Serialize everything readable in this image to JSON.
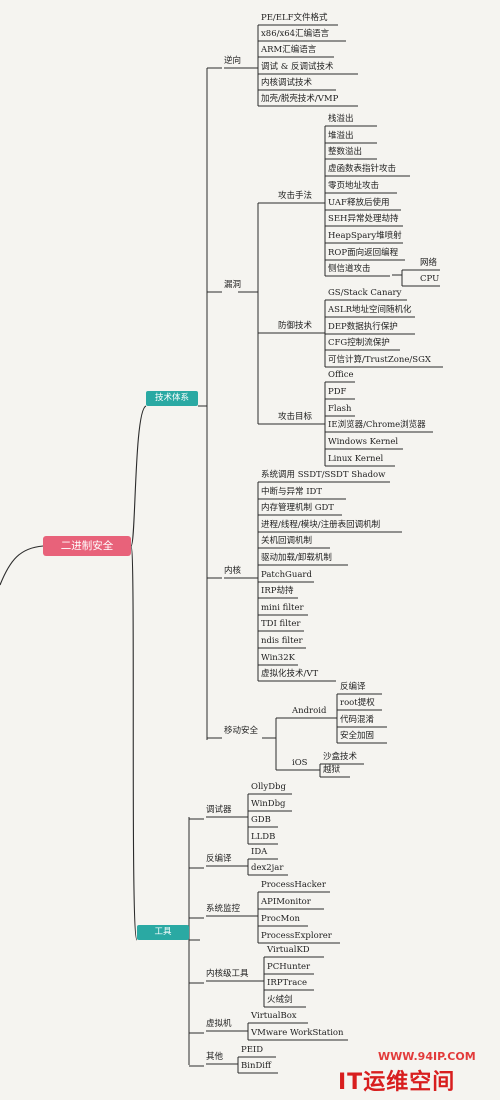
{
  "root": "二进制安全",
  "branches": {
    "tech": "技术体系",
    "tools": "工具"
  },
  "reverse": {
    "label": "逆向",
    "items": [
      "PE/ELF文件格式",
      "x86/x64汇编语言",
      "ARM汇编语言",
      "调试 & 反调试技术",
      "内核调试技术",
      "加壳/脱壳技术/VMP"
    ]
  },
  "vuln": {
    "label": "漏洞",
    "attack": {
      "label": "攻击手法",
      "items": [
        "栈溢出",
        "堆溢出",
        "整数溢出",
        "虚函数表指针攻击",
        "零页地址攻击",
        "UAF释放后使用",
        "SEH异常处理劫持",
        "HeapSpary堆喷射",
        "ROP面向返回编程",
        "侧信道攻击"
      ],
      "side_channel": [
        "网络",
        "CPU"
      ]
    },
    "defense": {
      "label": "防御技术",
      "items": [
        "GS/Stack Canary",
        "ASLR地址空间随机化",
        "DEP数据执行保护",
        "CFG控制流保护",
        "可信计算/TrustZone/SGX"
      ]
    },
    "targets": {
      "label": "攻击目标",
      "items": [
        "Office",
        "PDF",
        "Flash",
        "IE浏览器/Chrome浏览器",
        "Windows Kernel",
        "Linux Kernel"
      ]
    }
  },
  "kernel": {
    "label": "内核",
    "items": [
      "系统调用 SSDT/SSDT Shadow",
      "中断与异常 IDT",
      "内存管理机制 GDT",
      "进程/线程/模块/注册表回调机制",
      "关机回调机制",
      "驱动加载/卸载机制",
      "PatchGuard",
      "IRP劫持",
      "mini filter",
      "TDI filter",
      "ndis filter",
      "Win32K",
      "虚拟化技术/VT"
    ]
  },
  "mobile": {
    "label": "移动安全",
    "android": {
      "label": "Android",
      "items": [
        "反编译",
        "root提权",
        "代码混淆",
        "安全加固"
      ]
    },
    "ios": {
      "label": "iOS",
      "items": [
        "沙盒技术",
        "越狱"
      ]
    }
  },
  "tools": {
    "debugger": {
      "label": "调试器",
      "items": [
        "OllyDbg",
        "WinDbg",
        "GDB",
        "LLDB"
      ]
    },
    "decompiler": {
      "label": "反编译",
      "items": [
        "IDA",
        "dex2jar"
      ]
    },
    "monitor": {
      "label": "系统监控",
      "items": [
        "ProcessHacker",
        "APIMonitor",
        "ProcMon",
        "ProcessExplorer"
      ]
    },
    "kernel_tools": {
      "label": "内核级工具",
      "items": [
        "VirtualKD",
        "PCHunter",
        "IRPTrace",
        "火绒剑"
      ]
    },
    "vm": {
      "label": "虚拟机",
      "items": [
        "VirtualBox",
        "VMware WorkStation"
      ]
    },
    "other": {
      "label": "其他",
      "items": [
        "PEID",
        "BinDiff"
      ]
    }
  },
  "watermark": {
    "url": "WWW.94IP.COM",
    "name": "IT运维空间"
  },
  "colors": {
    "root": "#e8627a",
    "branch": "#2aa9a3",
    "line": "#2b2b2b",
    "watermark": "#d81e1e"
  }
}
